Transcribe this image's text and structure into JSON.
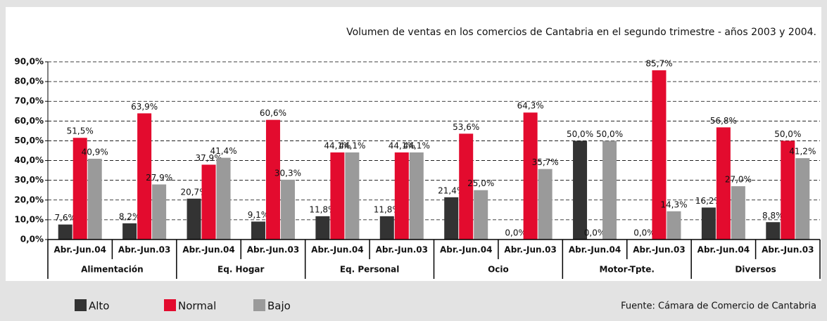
{
  "chart_data": {
    "type": "bar",
    "title": "Volumen de ventas en los comercios de Cantabria en el segundo trimestre - años 2003 y 2004.",
    "source": "Fuente: Cámara de Comercio de Cantabria",
    "categories": [
      "Abr.-Jun.04",
      "Abr.-Jun.03",
      "Abr.-Jun.04",
      "Abr.-Jun.03",
      "Abr.-Jun.04",
      "Abr.-Jun.03",
      "Abr.-Jun.04",
      "Abr.-Jun.03",
      "Abr.-Jun.04",
      "Abr.-Jun.03",
      "Abr.-Jun.04",
      "Abr.-Jun.03"
    ],
    "groups": [
      "Alimentación",
      "Eq. Hogar",
      "Eq. Personal",
      "Ocio",
      "Motor-Tpte.",
      "Diversos"
    ],
    "series": [
      {
        "name": "Alto",
        "color": "#333333",
        "values": [
          7.6,
          8.2,
          20.7,
          9.1,
          11.8,
          11.8,
          21.4,
          0.0,
          50.0,
          0.0,
          16.2,
          8.8
        ],
        "value_labels": [
          "7,6%",
          "8,2%",
          "20,7%",
          "9,1%",
          "11,8%",
          "11,8%",
          "21,4%",
          "0,0%",
          "50,0%",
          "0,0%",
          "16,2%",
          "8,8%"
        ]
      },
      {
        "name": "Normal",
        "color": "#e30b2e",
        "values": [
          51.5,
          63.9,
          37.9,
          60.6,
          44.1,
          44.1,
          53.6,
          64.3,
          0.0,
          85.7,
          56.8,
          50.0
        ],
        "value_labels": [
          "51,5%",
          "63,9%",
          "37,9%",
          "60,6%",
          "44,1%",
          "44,1%",
          "53,6%",
          "64,3%",
          "0,0%",
          "85,7%",
          "56,8%",
          "50,0%"
        ]
      },
      {
        "name": "Bajo",
        "color": "#9a9a9a",
        "values": [
          40.9,
          27.9,
          41.4,
          30.3,
          44.1,
          44.1,
          25.0,
          35.7,
          50.0,
          14.3,
          27.0,
          41.2
        ],
        "value_labels": [
          "40,9%",
          "27,9%",
          "41,4%",
          "30,3%",
          "44,1%",
          "44,1%",
          "25,0%",
          "35,7%",
          "50,0%",
          "14,3%",
          "27,0%",
          "41,2%"
        ]
      }
    ],
    "ylim": [
      0,
      90
    ],
    "yticks": [
      {
        "value": 0,
        "label": "0,0%"
      },
      {
        "value": 10,
        "label": "10,0%"
      },
      {
        "value": 20,
        "label": "20,0%"
      },
      {
        "value": 30,
        "label": "30,0%"
      },
      {
        "value": 40,
        "label": "40,0%"
      },
      {
        "value": 50,
        "label": "50,0%"
      },
      {
        "value": 60,
        "label": "60,0%"
      },
      {
        "value": 70,
        "label": "70,0%"
      },
      {
        "value": 80,
        "label": "80,0%"
      },
      {
        "value": 90,
        "label": "90,0%"
      }
    ],
    "grid": true
  }
}
